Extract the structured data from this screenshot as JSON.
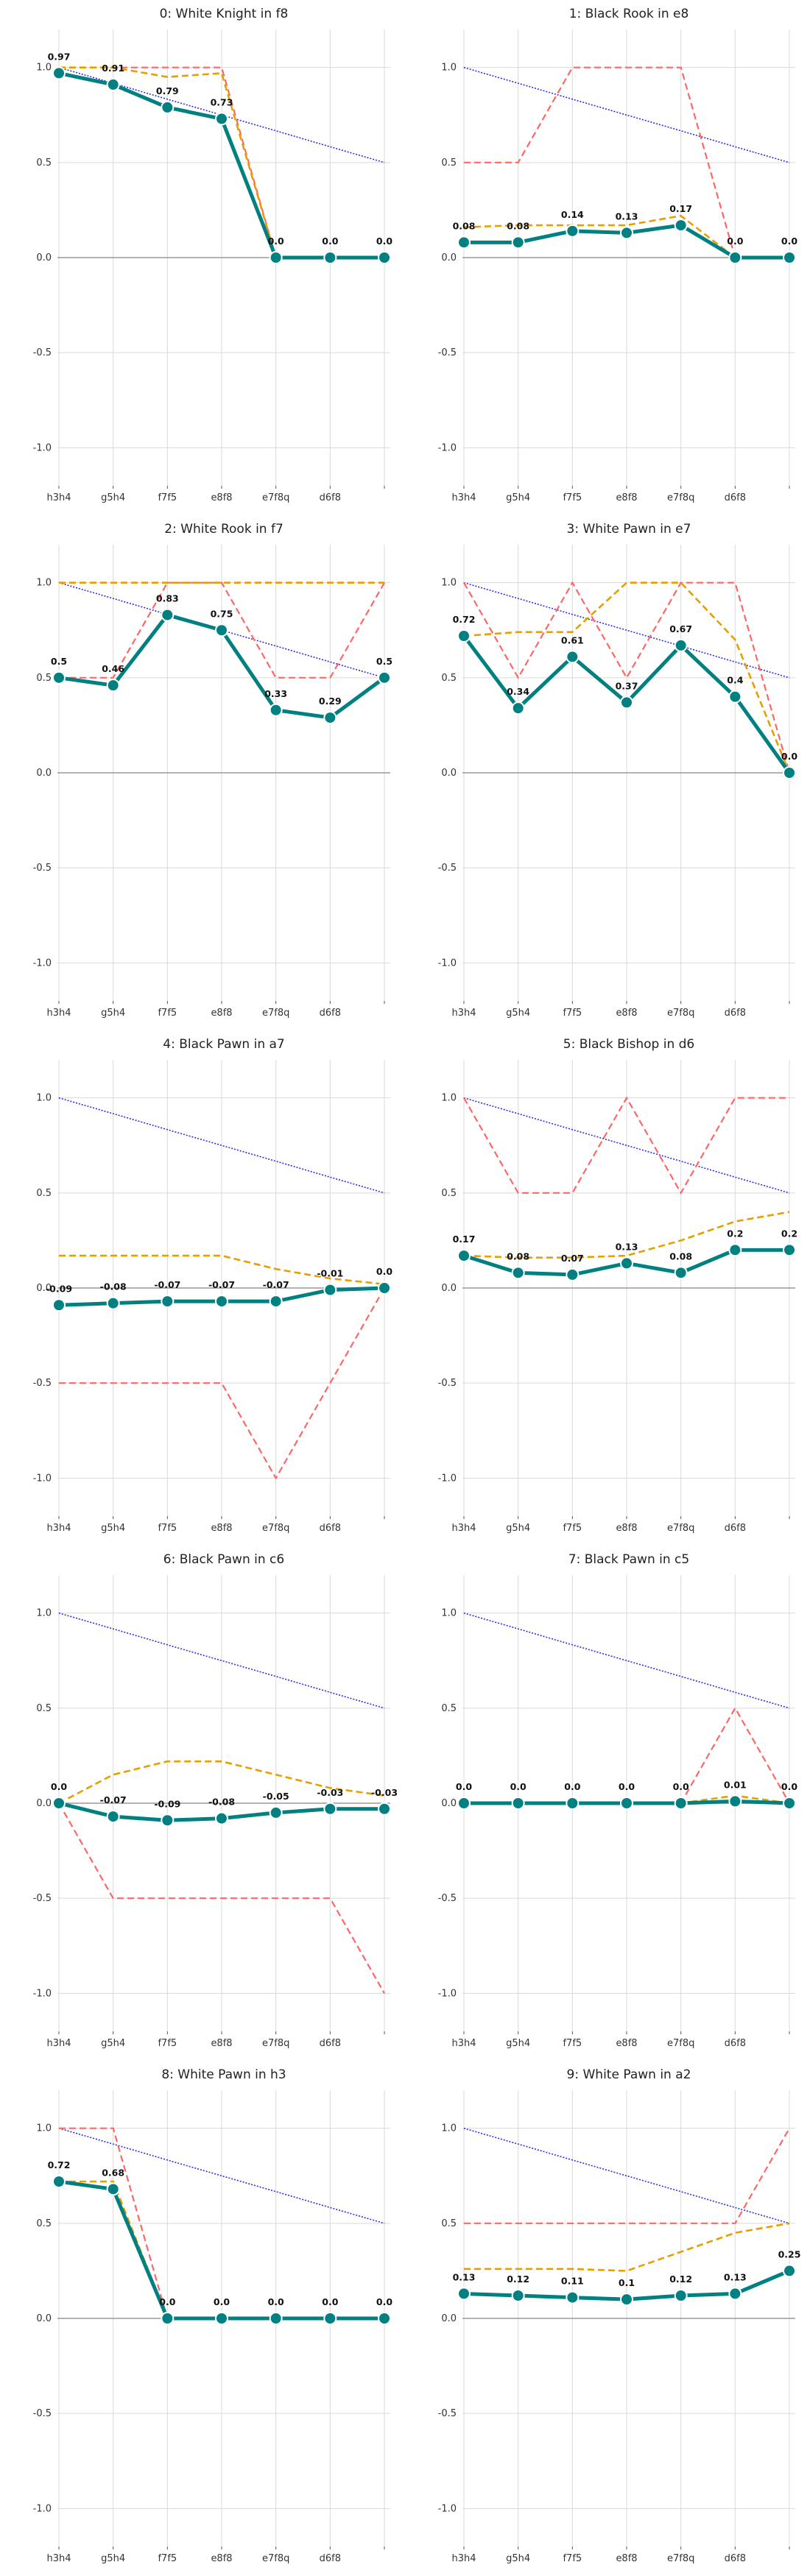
{
  "colors": {
    "main": "#008080",
    "orange": "#E69F00",
    "red": "#FF6666",
    "blue": "#2E2EE8",
    "grid": "#D9D9D9",
    "zero": "#999999"
  },
  "chart_data": [
    {
      "type": "line",
      "title": "0: White Knight in f8",
      "categories": [
        "h3h4",
        "g5h4",
        "f7f5",
        "e8f8",
        "e7f8q",
        "d6f8",
        ""
      ],
      "ylim": [
        -1.2,
        1.2
      ],
      "yticks": [
        "-1.0",
        "-0.5",
        "0.0",
        "0.5",
        "1.0"
      ],
      "grid": true,
      "series": [
        {
          "role": "main",
          "values": [
            0.97,
            0.91,
            0.79,
            0.73,
            0.0,
            0.0,
            0.0
          ],
          "labels": [
            "0.97",
            "0.91",
            "0.79",
            "0.73",
            "0.0",
            "0.0",
            "0.0"
          ]
        },
        {
          "role": "orange",
          "values": [
            1.0,
            1.0,
            0.95,
            0.97,
            0.0,
            0.0,
            0.0
          ]
        },
        {
          "role": "red",
          "values": [
            1.0,
            1.0,
            1.0,
            1.0,
            0.0,
            0.0,
            0.0
          ]
        },
        {
          "role": "blue",
          "values": [
            1.0,
            0.917,
            0.833,
            0.75,
            0.667,
            0.583,
            0.5
          ]
        }
      ]
    },
    {
      "type": "line",
      "title": "1: Black Rook in e8",
      "categories": [
        "h3h4",
        "g5h4",
        "f7f5",
        "e8f8",
        "e7f8q",
        "d6f8",
        ""
      ],
      "ylim": [
        -1.2,
        1.2
      ],
      "yticks": [
        "-1.0",
        "-0.5",
        "0.0",
        "0.5",
        "1.0"
      ],
      "grid": true,
      "series": [
        {
          "role": "main",
          "values": [
            0.08,
            0.08,
            0.14,
            0.13,
            0.17,
            0.0,
            0.0
          ],
          "labels": [
            "0.08",
            "0.08",
            "0.14",
            "0.13",
            "0.17",
            "0.0",
            "0.0"
          ]
        },
        {
          "role": "orange",
          "values": [
            0.16,
            0.17,
            0.17,
            0.17,
            0.22,
            0.0,
            0.0
          ]
        },
        {
          "role": "red",
          "values": [
            0.5,
            0.5,
            1.0,
            1.0,
            1.0,
            0.0,
            0.0
          ]
        },
        {
          "role": "blue",
          "values": [
            1.0,
            0.917,
            0.833,
            0.75,
            0.667,
            0.583,
            0.5
          ]
        }
      ]
    },
    {
      "type": "line",
      "title": "2: White Rook in f7",
      "categories": [
        "h3h4",
        "g5h4",
        "f7f5",
        "e8f8",
        "e7f8q",
        "d6f8",
        ""
      ],
      "ylim": [
        -1.2,
        1.2
      ],
      "yticks": [
        "-1.0",
        "-0.5",
        "0.0",
        "0.5",
        "1.0"
      ],
      "grid": true,
      "series": [
        {
          "role": "main",
          "values": [
            0.5,
            0.46,
            0.83,
            0.75,
            0.33,
            0.29,
            0.5
          ],
          "labels": [
            "0.5",
            "0.46",
            "0.83",
            "0.75",
            "0.33",
            "0.29",
            "0.5"
          ]
        },
        {
          "role": "orange",
          "values": [
            1.0,
            1.0,
            1.0,
            1.0,
            1.0,
            1.0,
            1.0
          ]
        },
        {
          "role": "red",
          "values": [
            0.5,
            0.5,
            1.0,
            1.0,
            0.5,
            0.5,
            1.0
          ]
        },
        {
          "role": "blue",
          "values": [
            1.0,
            0.917,
            0.833,
            0.75,
            0.667,
            0.583,
            0.5
          ]
        }
      ]
    },
    {
      "type": "line",
      "title": "3: White Pawn in e7",
      "categories": [
        "h3h4",
        "g5h4",
        "f7f5",
        "e8f8",
        "e7f8q",
        "d6f8",
        ""
      ],
      "ylim": [
        -1.2,
        1.2
      ],
      "yticks": [
        "-1.0",
        "-0.5",
        "0.0",
        "0.5",
        "1.0"
      ],
      "grid": true,
      "series": [
        {
          "role": "main",
          "values": [
            0.72,
            0.34,
            0.61,
            0.37,
            0.67,
            0.4,
            0.0
          ],
          "labels": [
            "0.72",
            "0.34",
            "0.61",
            "0.37",
            "0.67",
            "0.4",
            "0.0"
          ]
        },
        {
          "role": "orange",
          "values": [
            0.72,
            0.74,
            0.74,
            1.0,
            1.0,
            0.7,
            0.0
          ]
        },
        {
          "role": "red",
          "values": [
            1.0,
            0.5,
            1.0,
            0.5,
            1.0,
            1.0,
            0.0
          ]
        },
        {
          "role": "blue",
          "values": [
            1.0,
            0.917,
            0.833,
            0.75,
            0.667,
            0.583,
            0.5
          ]
        }
      ]
    },
    {
      "type": "line",
      "title": "4: Black Pawn in a7",
      "categories": [
        "h3h4",
        "g5h4",
        "f7f5",
        "e8f8",
        "e7f8q",
        "d6f8",
        ""
      ],
      "ylim": [
        -1.2,
        1.2
      ],
      "yticks": [
        "-1.0",
        "-0.5",
        "0.0",
        "0.5",
        "1.0"
      ],
      "grid": true,
      "series": [
        {
          "role": "main",
          "values": [
            -0.09,
            -0.08,
            -0.07,
            -0.07,
            -0.07,
            -0.01,
            0.0
          ],
          "labels": [
            "-0.09",
            "-0.08",
            "-0.07",
            "-0.07",
            "-0.07",
            "-0.01",
            "0.0"
          ]
        },
        {
          "role": "orange",
          "values": [
            0.17,
            0.17,
            0.17,
            0.17,
            0.1,
            0.05,
            0.02
          ]
        },
        {
          "role": "red",
          "values": [
            -0.5,
            -0.5,
            -0.5,
            -0.5,
            -1.0,
            -0.5,
            0.0
          ]
        },
        {
          "role": "blue",
          "values": [
            1.0,
            0.917,
            0.833,
            0.75,
            0.667,
            0.583,
            0.5
          ]
        }
      ]
    },
    {
      "type": "line",
      "title": "5: Black Bishop in d6",
      "categories": [
        "h3h4",
        "g5h4",
        "f7f5",
        "e8f8",
        "e7f8q",
        "d6f8",
        ""
      ],
      "ylim": [
        -1.2,
        1.2
      ],
      "yticks": [
        "-1.0",
        "-0.5",
        "0.0",
        "0.5",
        "1.0"
      ],
      "grid": true,
      "series": [
        {
          "role": "main",
          "values": [
            0.17,
            0.08,
            0.07,
            0.13,
            0.08,
            0.2,
            0.2
          ],
          "labels": [
            "0.17",
            "0.08",
            "0.07",
            "0.13",
            "0.08",
            "0.2",
            "0.2"
          ]
        },
        {
          "role": "orange",
          "values": [
            0.17,
            0.16,
            0.16,
            0.17,
            0.25,
            0.35,
            0.4
          ]
        },
        {
          "role": "red",
          "values": [
            1.0,
            0.5,
            0.5,
            1.0,
            0.5,
            1.0,
            1.0
          ]
        },
        {
          "role": "blue",
          "values": [
            1.0,
            0.917,
            0.833,
            0.75,
            0.667,
            0.583,
            0.5
          ]
        }
      ]
    },
    {
      "type": "line",
      "title": "6: Black Pawn in c6",
      "categories": [
        "h3h4",
        "g5h4",
        "f7f5",
        "e8f8",
        "e7f8q",
        "d6f8",
        ""
      ],
      "ylim": [
        -1.2,
        1.2
      ],
      "yticks": [
        "-1.0",
        "-0.5",
        "0.0",
        "0.5",
        "1.0"
      ],
      "grid": true,
      "series": [
        {
          "role": "main",
          "values": [
            0.0,
            -0.07,
            -0.09,
            -0.08,
            -0.05,
            -0.03,
            -0.03
          ],
          "labels": [
            "0.0",
            "-0.07",
            "-0.09",
            "-0.08",
            "-0.05",
            "-0.03",
            "-0.03"
          ]
        },
        {
          "role": "orange",
          "values": [
            0.0,
            0.15,
            0.22,
            0.22,
            0.15,
            0.08,
            0.04
          ]
        },
        {
          "role": "red",
          "values": [
            0.0,
            -0.5,
            -0.5,
            -0.5,
            -0.5,
            -0.5,
            -1.0
          ]
        },
        {
          "role": "blue",
          "values": [
            1.0,
            0.917,
            0.833,
            0.75,
            0.667,
            0.583,
            0.5
          ]
        }
      ]
    },
    {
      "type": "line",
      "title": "7: Black Pawn in c5",
      "categories": [
        "h3h4",
        "g5h4",
        "f7f5",
        "e8f8",
        "e7f8q",
        "d6f8",
        ""
      ],
      "ylim": [
        -1.2,
        1.2
      ],
      "yticks": [
        "-1.0",
        "-0.5",
        "0.0",
        "0.5",
        "1.0"
      ],
      "grid": true,
      "series": [
        {
          "role": "main",
          "values": [
            0.0,
            0.0,
            0.0,
            0.0,
            0.0,
            0.01,
            0.0
          ],
          "labels": [
            "0.0",
            "0.0",
            "0.0",
            "0.0",
            "0.0",
            "0.01",
            "0.0"
          ]
        },
        {
          "role": "orange",
          "values": [
            0.0,
            0.0,
            0.0,
            0.0,
            0.0,
            0.04,
            0.0
          ]
        },
        {
          "role": "red",
          "values": [
            0.0,
            0.0,
            0.0,
            0.0,
            0.0,
            0.5,
            0.0
          ]
        },
        {
          "role": "blue",
          "values": [
            1.0,
            0.917,
            0.833,
            0.75,
            0.667,
            0.583,
            0.5
          ]
        }
      ]
    },
    {
      "type": "line",
      "title": "8: White Pawn in h3",
      "categories": [
        "h3h4",
        "g5h4",
        "f7f5",
        "e8f8",
        "e7f8q",
        "d6f8",
        ""
      ],
      "ylim": [
        -1.2,
        1.2
      ],
      "yticks": [
        "-1.0",
        "-0.5",
        "0.0",
        "0.5",
        "1.0"
      ],
      "grid": true,
      "series": [
        {
          "role": "main",
          "values": [
            0.72,
            0.68,
            0.0,
            0.0,
            0.0,
            0.0,
            0.0
          ],
          "labels": [
            "0.72",
            "0.68",
            "0.0",
            "0.0",
            "0.0",
            "0.0",
            "0.0"
          ]
        },
        {
          "role": "orange",
          "values": [
            0.72,
            0.72,
            0.0,
            0.0,
            0.0,
            0.0,
            0.0
          ]
        },
        {
          "role": "red",
          "values": [
            1.0,
            1.0,
            0.0,
            0.0,
            0.0,
            0.0,
            0.0
          ]
        },
        {
          "role": "blue",
          "values": [
            1.0,
            0.917,
            0.833,
            0.75,
            0.667,
            0.583,
            0.5
          ]
        }
      ]
    },
    {
      "type": "line",
      "title": "9: White Pawn in a2",
      "categories": [
        "h3h4",
        "g5h4",
        "f7f5",
        "e8f8",
        "e7f8q",
        "d6f8",
        ""
      ],
      "ylim": [
        -1.2,
        1.2
      ],
      "yticks": [
        "-1.0",
        "-0.5",
        "0.0",
        "0.5",
        "1.0"
      ],
      "grid": true,
      "series": [
        {
          "role": "main",
          "values": [
            0.13,
            0.12,
            0.11,
            0.1,
            0.12,
            0.13,
            0.25
          ],
          "labels": [
            "0.13",
            "0.12",
            "0.11",
            "0.1",
            "0.12",
            "0.13",
            "0.25"
          ]
        },
        {
          "role": "orange",
          "values": [
            0.26,
            0.26,
            0.26,
            0.25,
            0.35,
            0.45,
            0.5
          ]
        },
        {
          "role": "red",
          "values": [
            0.5,
            0.5,
            0.5,
            0.5,
            0.5,
            0.5,
            1.0
          ]
        },
        {
          "role": "blue",
          "values": [
            1.0,
            0.917,
            0.833,
            0.75,
            0.667,
            0.583,
            0.5
          ]
        }
      ]
    }
  ]
}
